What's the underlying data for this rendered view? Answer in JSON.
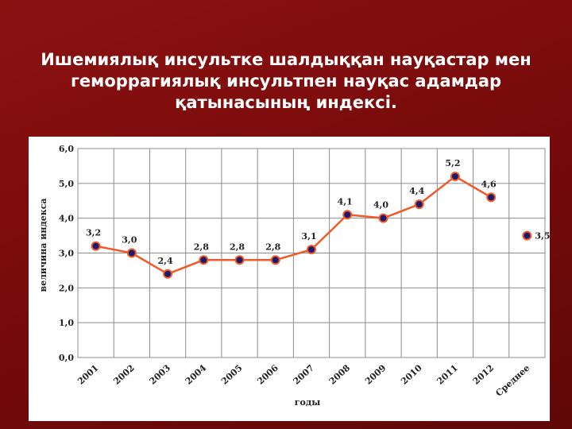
{
  "slide": {
    "title_lines": [
      "Ишемиялық инсультке шалдыққан науқастар мен",
      "геморрагиялық инсультпен науқас адамдар",
      "қатынасының индексі."
    ]
  },
  "chart_data": {
    "type": "line",
    "title": "",
    "xlabel": "годы",
    "ylabel": "величина индекса",
    "ylim": [
      0,
      6
    ],
    "yticks": [
      "0,0",
      "1,0",
      "2,0",
      "3,0",
      "4,0",
      "5,0",
      "6,0"
    ],
    "categories": [
      "2001",
      "2002",
      "2003",
      "2004",
      "2005",
      "2006",
      "2007",
      "2008",
      "2009",
      "2010",
      "2011",
      "2012",
      "Среднее"
    ],
    "series": [
      {
        "values": [
          3.2,
          3.0,
          2.4,
          2.8,
          2.8,
          2.8,
          3.1,
          4.1,
          4.0,
          4.4,
          5.2,
          4.6,
          3.5
        ],
        "labels": [
          "3,2",
          "3,0",
          "2,4",
          "2,8",
          "2,8",
          "2,8",
          "3,1",
          "4,1",
          "4,0",
          "4,4",
          "5,2",
          "4,6",
          "3,5"
        ],
        "connected_points": 12
      }
    ],
    "colors": {
      "line": "#f05a28",
      "marker": "#1a1a6e",
      "grid": "#8c8c8c",
      "background": "#ffffff"
    },
    "grid": true,
    "legend": "none"
  }
}
